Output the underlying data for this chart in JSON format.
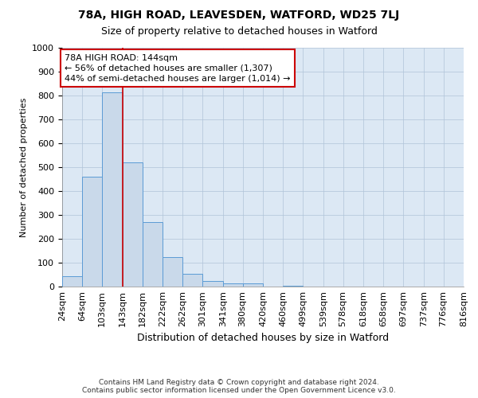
{
  "title1": "78A, HIGH ROAD, LEAVESDEN, WATFORD, WD25 7LJ",
  "title2": "Size of property relative to detached houses in Watford",
  "xlabel": "Distribution of detached houses by size in Watford",
  "ylabel": "Number of detached properties",
  "bin_edges": [
    24,
    64,
    103,
    143,
    182,
    222,
    262,
    301,
    341,
    380,
    420,
    460,
    499,
    539,
    578,
    618,
    658,
    697,
    737,
    776,
    816
  ],
  "bar_heights": [
    42,
    460,
    815,
    520,
    270,
    125,
    55,
    25,
    15,
    15,
    0,
    5,
    0,
    0,
    0,
    0,
    0,
    0,
    0,
    0
  ],
  "bar_facecolor": "#c9d9ea",
  "bar_edgecolor": "#5b9bd5",
  "vline_x": 143,
  "vline_color": "#cc0000",
  "annotation_line1": "78A HIGH ROAD: 144sqm",
  "annotation_line2": "← 56% of detached houses are smaller (1,307)",
  "annotation_line3": "44% of semi-detached houses are larger (1,014) →",
  "annotation_box_edgecolor": "#cc0000",
  "annotation_box_facecolor": "#ffffff",
  "ylim": [
    0,
    1000
  ],
  "yticks": [
    0,
    100,
    200,
    300,
    400,
    500,
    600,
    700,
    800,
    900,
    1000
  ],
  "grid_color": "#b0c4d8",
  "background_color": "#dce8f4",
  "footer_line1": "Contains HM Land Registry data © Crown copyright and database right 2024.",
  "footer_line2": "Contains public sector information licensed under the Open Government Licence v3.0.",
  "title1_fontsize": 10,
  "title2_fontsize": 9,
  "xlabel_fontsize": 9,
  "ylabel_fontsize": 8,
  "tick_fontsize": 8,
  "annot_fontsize": 8,
  "footer_fontsize": 6.5
}
